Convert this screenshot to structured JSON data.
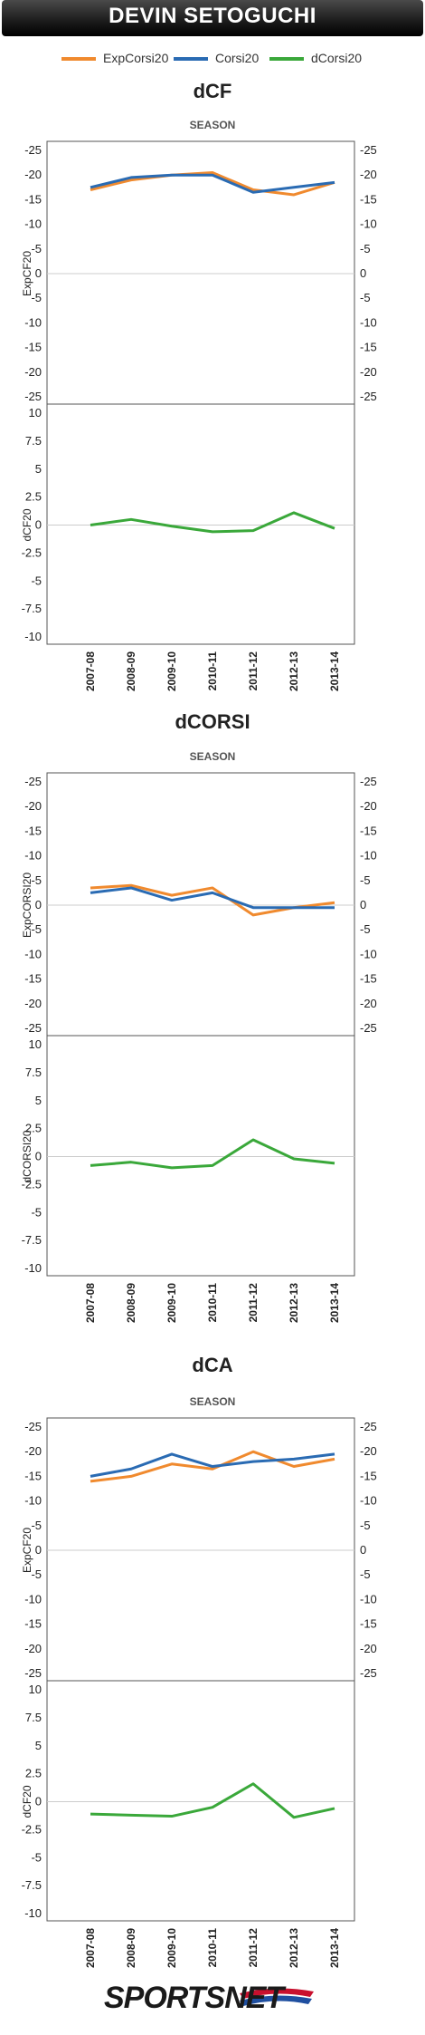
{
  "header": {
    "title": "DEVIN SETOGUCHI"
  },
  "legend": [
    {
      "label": "ExpCorsi20",
      "color": "#f08a2e"
    },
    {
      "label": "Corsi20",
      "color": "#2a6bb3"
    },
    {
      "label": "dCorsi20",
      "color": "#3aa83a"
    }
  ],
  "colors": {
    "exp": "#f08a2e",
    "actual": "#2a6bb3",
    "diff": "#3aa83a"
  },
  "chart_data": [
    {
      "type": "line",
      "title": "dCF",
      "subtitle": "SEASON",
      "categories": [
        "2007-08",
        "2008-09",
        "2009-10",
        "2010-11",
        "2011-12",
        "2012-13",
        "2013-14"
      ],
      "top": {
        "ylabel": "ExpCF20",
        "ylim": [
          -25,
          25
        ],
        "ticks": [
          "-25",
          "-20",
          "-15",
          "-10",
          "-5",
          "0",
          "-5",
          "-10",
          "-15",
          "-20",
          "-25"
        ],
        "series": [
          {
            "name": "ExpCorsi20",
            "values": [
              17,
              19,
              20,
              20.5,
              17,
              16,
              18.5
            ]
          },
          {
            "name": "Corsi20",
            "values": [
              17.5,
              19.5,
              20,
              20,
              16.5,
              17.5,
              18.5
            ]
          }
        ]
      },
      "bottom": {
        "ylabel": "dCF20",
        "ylim": [
          -10,
          10
        ],
        "ticks": [
          "10",
          "7.5",
          "5",
          "2.5",
          "0",
          "-2.5",
          "-5",
          "-7.5",
          "-10"
        ],
        "series": [
          {
            "name": "dCorsi20",
            "values": [
              0,
              0.5,
              -0.1,
              -0.6,
              -0.5,
              1.1,
              -0.3
            ]
          }
        ]
      }
    },
    {
      "type": "line",
      "title": "dCORSI",
      "subtitle": "SEASON",
      "categories": [
        "2007-08",
        "2008-09",
        "2009-10",
        "2010-11",
        "2011-12",
        "2012-13",
        "2013-14"
      ],
      "top": {
        "ylabel": "ExpCORSI20",
        "ylim": [
          -25,
          25
        ],
        "ticks": [
          "-25",
          "-20",
          "-15",
          "-10",
          "-5",
          "0",
          "-5",
          "-10",
          "-15",
          "-20",
          "-25"
        ],
        "series": [
          {
            "name": "ExpCorsi20",
            "values": [
              3.5,
              4,
              2,
              3.5,
              -2,
              -0.5,
              0.5
            ]
          },
          {
            "name": "Corsi20",
            "values": [
              2.5,
              3.5,
              1,
              2.5,
              -0.5,
              -0.5,
              -0.5
            ]
          }
        ]
      },
      "bottom": {
        "ylabel": "dCORSI20",
        "ylim": [
          -10,
          10
        ],
        "ticks": [
          "10",
          "7.5",
          "5",
          "2.5",
          "0",
          "-2.5",
          "-5",
          "-7.5",
          "-10"
        ],
        "series": [
          {
            "name": "dCorsi20",
            "values": [
              -0.8,
              -0.5,
              -1,
              -0.8,
              1.5,
              -0.2,
              -0.6
            ]
          }
        ]
      }
    },
    {
      "type": "line",
      "title": "dCA",
      "subtitle": "SEASON",
      "categories": [
        "2007-08",
        "2008-09",
        "2009-10",
        "2010-11",
        "2011-12",
        "2012-13",
        "2013-14"
      ],
      "top": {
        "ylabel": "ExpCF20",
        "ylim": [
          -25,
          25
        ],
        "ticks": [
          "-25",
          "-20",
          "-15",
          "-10",
          "-5",
          "0",
          "-5",
          "-10",
          "-15",
          "-20",
          "-25"
        ],
        "series": [
          {
            "name": "ExpCorsi20",
            "values": [
              14,
              15,
              17.5,
              16.5,
              20,
              17,
              18.5
            ]
          },
          {
            "name": "Corsi20",
            "values": [
              15,
              16.5,
              19.5,
              17,
              18,
              18.5,
              19.5
            ]
          }
        ]
      },
      "bottom": {
        "ylabel": "dCF20",
        "ylim": [
          -10,
          10
        ],
        "ticks": [
          "10",
          "7.5",
          "5",
          "2.5",
          "0",
          "-2.5",
          "-5",
          "-7.5",
          "-10"
        ],
        "series": [
          {
            "name": "dCorsi20",
            "values": [
              -1.1,
              -1.2,
              -1.3,
              -0.5,
              1.6,
              -1.4,
              -0.6
            ]
          }
        ]
      }
    }
  ],
  "footer": {
    "logo": "SPORTSNET"
  }
}
